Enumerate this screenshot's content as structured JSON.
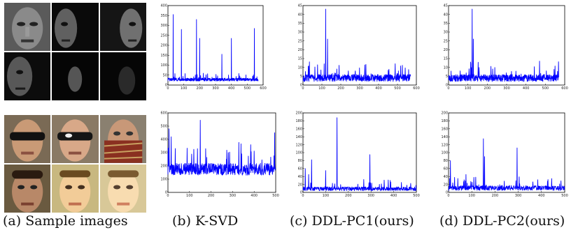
{
  "captions": {
    "a": "(a) Sample images",
    "b": "(b) K-SVD",
    "c": "(c) DDL-PC1(ours)",
    "d": "(d) DDL-PC2(ours)"
  },
  "colors": {
    "series": "#0000ff",
    "axis": "#000000"
  },
  "chart_data": [
    {
      "id": "ksvd-top",
      "type": "line",
      "xlim": [
        0,
        600
      ],
      "ylim": [
        0,
        400
      ],
      "xticks": [
        0,
        100,
        200,
        300,
        400,
        500,
        600
      ],
      "yticks": [
        0,
        50,
        100,
        150,
        200,
        250,
        300,
        350,
        400
      ],
      "n": 570,
      "base": 20,
      "noise": 15,
      "peaks": [
        [
          33,
          355
        ],
        [
          85,
          280
        ],
        [
          180,
          330
        ],
        [
          200,
          235
        ],
        [
          340,
          155
        ],
        [
          400,
          235
        ],
        [
          545,
          285
        ]
      ]
    },
    {
      "id": "ksvd-bottom",
      "type": "line",
      "xlim": [
        0,
        500
      ],
      "ylim": [
        0,
        600
      ],
      "xticks": [
        0,
        100,
        200,
        300,
        400,
        500
      ],
      "yticks": [
        0,
        100,
        200,
        300,
        400,
        500,
        600
      ],
      "n": 500,
      "base": 130,
      "noise": 90,
      "peaks": [
        [
          5,
          480
        ],
        [
          15,
          420
        ],
        [
          150,
          545
        ],
        [
          175,
          330
        ],
        [
          280,
          300
        ],
        [
          495,
          450
        ]
      ]
    },
    {
      "id": "pc1-top",
      "type": "line",
      "xlim": [
        0,
        600
      ],
      "ylim": [
        0,
        45
      ],
      "xticks": [
        0,
        100,
        200,
        300,
        400,
        500,
        600
      ],
      "yticks": [
        0,
        5,
        10,
        15,
        20,
        25,
        30,
        35,
        40,
        45
      ],
      "n": 570,
      "base": 2,
      "noise": 4,
      "peaks": [
        [
          120,
          43
        ],
        [
          130,
          26
        ],
        [
          112,
          12
        ],
        [
          240,
          8
        ],
        [
          505,
          8
        ]
      ]
    },
    {
      "id": "pc1-bottom",
      "type": "line",
      "xlim": [
        0,
        500
      ],
      "ylim": [
        0,
        200
      ],
      "xticks": [
        0,
        100,
        200,
        300,
        400,
        500
      ],
      "yticks": [
        0,
        20,
        40,
        60,
        80,
        100,
        120,
        140,
        160,
        180,
        200
      ],
      "n": 500,
      "base": 4,
      "noise": 10,
      "peaks": [
        [
          10,
          60
        ],
        [
          38,
          82
        ],
        [
          150,
          188
        ],
        [
          100,
          55
        ],
        [
          295,
          95
        ],
        [
          25,
          45
        ]
      ]
    },
    {
      "id": "pc2-top",
      "type": "line",
      "xlim": [
        0,
        600
      ],
      "ylim": [
        0,
        45
      ],
      "xticks": [
        0,
        100,
        200,
        300,
        400,
        500,
        600
      ],
      "yticks": [
        0,
        5,
        10,
        15,
        20,
        25,
        30,
        35,
        40,
        45
      ],
      "n": 570,
      "base": 2,
      "noise": 4,
      "peaks": [
        [
          122,
          43
        ],
        [
          128,
          26
        ],
        [
          115,
          12
        ],
        [
          505,
          8
        ]
      ]
    },
    {
      "id": "pc2-bottom",
      "type": "line",
      "xlim": [
        0,
        500
      ],
      "ylim": [
        0,
        200
      ],
      "xticks": [
        0,
        100,
        200,
        300,
        400,
        500
      ],
      "yticks": [
        0,
        20,
        40,
        60,
        80,
        100,
        120,
        140,
        160,
        180,
        200
      ],
      "n": 500,
      "base": 5,
      "noise": 12,
      "peaks": [
        [
          8,
          80
        ],
        [
          150,
          135
        ],
        [
          155,
          90
        ],
        [
          295,
          112
        ],
        [
          75,
          45
        ],
        [
          40,
          35
        ]
      ]
    }
  ]
}
